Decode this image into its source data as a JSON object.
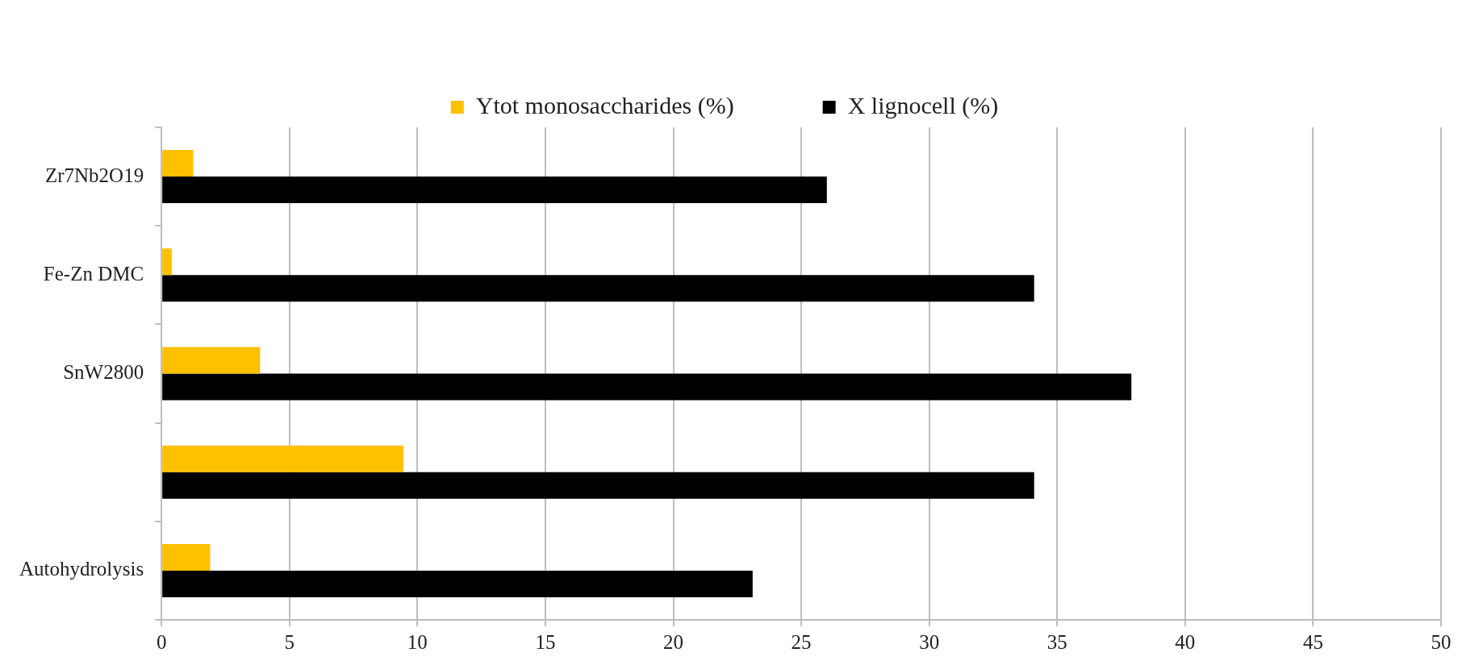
{
  "chart_data": {
    "type": "bar",
    "orientation": "horizontal",
    "categories": [
      "Zr7Nb2O19",
      "Fe-Zn DMC",
      "SnW2800",
      null,
      "Autohydrolysis"
    ],
    "series": [
      {
        "name": "Ytot monosaccharides (%)",
        "color": "#ffc000",
        "values": [
          1.24,
          0.4,
          3.85,
          9.45,
          1.9
        ]
      },
      {
        "name": "X lignocell (%)",
        "color": "#000000",
        "values": [
          26.0,
          34.1,
          37.9,
          34.1,
          23.1
        ]
      }
    ],
    "xlim": [
      0,
      50
    ],
    "xticks": [
      0,
      5,
      10,
      15,
      20,
      25,
      30,
      35,
      40,
      45,
      50
    ],
    "grid": "x",
    "legend": "top"
  }
}
